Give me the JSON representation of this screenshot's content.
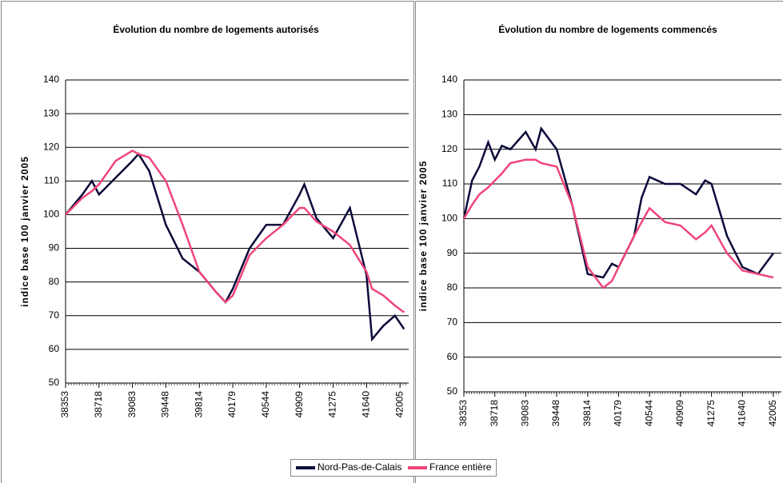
{
  "chart_data": [
    {
      "type": "line",
      "title": "Évolution du nombre de logements autorisés",
      "y_label": "indice base 100 janvier 2005",
      "x": [
        38353,
        38536,
        38640,
        38718,
        38901,
        39083,
        39150,
        39266,
        39448,
        39631,
        39814,
        39997,
        40100,
        40179,
        40362,
        40544,
        40727,
        40909,
        40960,
        41092,
        41275,
        41458,
        41640,
        41700,
        41823,
        41950,
        42050
      ],
      "series": [
        {
          "name": "Nord-Pas-de-Calais",
          "color": "#0b0b3b",
          "values": [
            100,
            106,
            110,
            106,
            111,
            116,
            118,
            113,
            97,
            87,
            83,
            77,
            74,
            78,
            90,
            97,
            97,
            106,
            109,
            99,
            93,
            102,
            82,
            63,
            67,
            70,
            66
          ]
        },
        {
          "name": "France entière",
          "color": "#f0457a",
          "values": [
            100,
            105,
            107,
            109,
            116,
            119,
            118,
            117,
            110,
            97,
            83,
            77,
            74,
            76,
            88,
            93,
            97,
            102,
            102,
            98,
            95,
            91,
            83,
            78,
            76,
            73,
            71
          ]
        }
      ],
      "xlim": [
        38353,
        42100
      ],
      "xticks": [
        38353,
        38718,
        39083,
        39448,
        39814,
        40179,
        40544,
        40909,
        41275,
        41640,
        42005
      ],
      "ylim": [
        50,
        140
      ],
      "yticks": [
        50,
        60,
        70,
        80,
        90,
        100,
        110,
        120,
        130,
        140
      ],
      "grid": true
    },
    {
      "type": "line",
      "title": "Évolution du nombre de logements commencés",
      "y_label": "indice base 100 janvier 2005",
      "x": [
        38353,
        38450,
        38536,
        38640,
        38718,
        38800,
        38901,
        39083,
        39200,
        39266,
        39448,
        39631,
        39814,
        39997,
        40100,
        40179,
        40362,
        40450,
        40544,
        40727,
        40909,
        41092,
        41200,
        41275,
        41458,
        41640,
        41823,
        42005
      ],
      "series": [
        {
          "name": "Nord-Pas-de-Calais",
          "color": "#0b0b3b",
          "values": [
            100,
            111,
            115,
            122,
            117,
            121,
            120,
            125,
            120,
            126,
            120,
            104,
            84,
            83,
            87,
            86,
            95,
            106,
            112,
            110,
            110,
            107,
            111,
            110,
            95,
            86,
            84,
            90
          ]
        },
        {
          "name": "France entière",
          "color": "#f0457a",
          "values": [
            100,
            104,
            107,
            109,
            111,
            113,
            116,
            117,
            117,
            116,
            115,
            104,
            86,
            80,
            82,
            86,
            95,
            99,
            103,
            99,
            98,
            94,
            96,
            98,
            90,
            85,
            84,
            83
          ]
        }
      ],
      "xlim": [
        38353,
        42100
      ],
      "xticks": [
        38353,
        38718,
        39083,
        39448,
        39814,
        40179,
        40544,
        40909,
        41275,
        41640,
        42005
      ],
      "ylim": [
        50,
        140
      ],
      "yticks": [
        50,
        60,
        70,
        80,
        90,
        100,
        110,
        120,
        130,
        140
      ],
      "grid": true
    }
  ]
}
